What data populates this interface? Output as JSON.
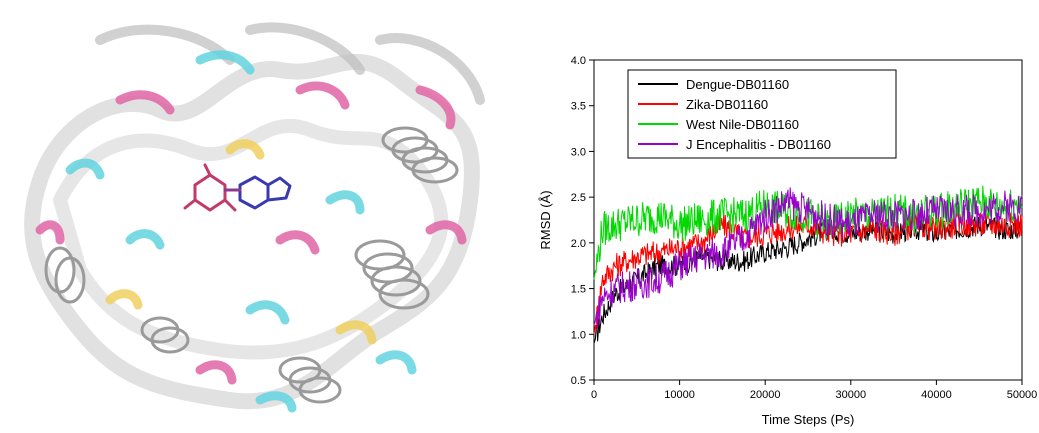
{
  "protein_image": {
    "description_icon": "protein-ribbon-structure-image"
  },
  "chart_data": {
    "type": "line",
    "xlabel": "Time Steps (Ps)",
    "ylabel": "RMSD (Å)",
    "xlim": [
      0,
      50000
    ],
    "ylim": [
      0.5,
      4.0
    ],
    "x_ticks": [
      "0",
      "10000",
      "20000",
      "30000",
      "40000",
      "50000"
    ],
    "y_ticks": [
      "0.5",
      "1.0",
      "1.5",
      "2.0",
      "2.5",
      "3.0",
      "3.5",
      "4.0"
    ],
    "grid": false,
    "legend_position": "top-left",
    "series": [
      {
        "name": "Dengue-DB01160",
        "color": "#000000",
        "x": [
          0,
          1000,
          2500,
          5000,
          7500,
          10000,
          12500,
          15000,
          17500,
          20000,
          22500,
          25000,
          27500,
          30000,
          32500,
          35000,
          37500,
          40000,
          42500,
          45000,
          47500,
          50000
        ],
        "y": [
          0.9,
          1.2,
          1.45,
          1.6,
          1.75,
          1.75,
          1.85,
          1.8,
          1.8,
          1.9,
          1.95,
          2.05,
          2.15,
          2.1,
          2.15,
          2.1,
          2.15,
          2.1,
          2.15,
          2.2,
          2.15,
          2.15
        ]
      },
      {
        "name": "Zika-DB01160",
        "color": "#ff0000",
        "x": [
          0,
          1000,
          2500,
          5000,
          7500,
          10000,
          12500,
          15000,
          17500,
          20000,
          22500,
          25000,
          27500,
          30000,
          32500,
          35000,
          37500,
          40000,
          42500,
          45000,
          47500,
          50000
        ],
        "y": [
          1.0,
          1.6,
          1.75,
          1.85,
          1.9,
          1.95,
          2.0,
          2.2,
          2.05,
          2.1,
          2.15,
          2.2,
          2.1,
          2.1,
          2.15,
          2.1,
          2.2,
          2.15,
          2.2,
          2.2,
          2.2,
          2.2
        ]
      },
      {
        "name": "West Nile-DB01160",
        "color": "#00d800",
        "x": [
          0,
          1000,
          2500,
          5000,
          7500,
          10000,
          12500,
          15000,
          17500,
          20000,
          22500,
          25000,
          27500,
          30000,
          32500,
          35000,
          37500,
          40000,
          42500,
          45000,
          47500,
          50000
        ],
        "y": [
          1.6,
          2.15,
          2.2,
          2.25,
          2.3,
          2.2,
          2.25,
          2.3,
          2.3,
          2.4,
          2.35,
          2.3,
          2.2,
          2.3,
          2.3,
          2.35,
          2.3,
          2.35,
          2.4,
          2.45,
          2.4,
          2.45
        ]
      },
      {
        "name": "J Encephalitis - DB01160",
        "color": "#9900cc",
        "x": [
          0,
          1000,
          2500,
          5000,
          7500,
          10000,
          12500,
          15000,
          17500,
          20000,
          22500,
          25000,
          27500,
          30000,
          32500,
          35000,
          37500,
          40000,
          42500,
          45000,
          47500,
          50000
        ],
        "y": [
          1.1,
          1.4,
          1.5,
          1.55,
          1.6,
          1.75,
          1.85,
          1.9,
          2.05,
          2.3,
          2.45,
          2.35,
          2.25,
          2.2,
          2.3,
          2.3,
          2.3,
          2.35,
          2.35,
          2.35,
          2.4,
          2.4
        ]
      }
    ]
  }
}
